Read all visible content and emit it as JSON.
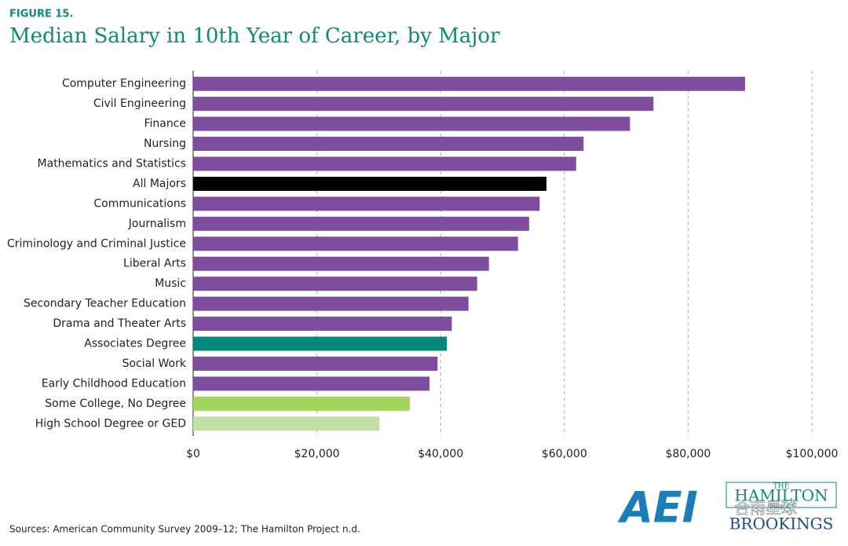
{
  "figure_label": "FIGURE 15.",
  "source": "Sources: American Community Survey 2009–12; The Hamilton Project n.d.",
  "logos": {
    "aei": "AEI",
    "hamilton_top": "THE",
    "hamilton_main": "HAMILTON",
    "hamilton_sub": "PROJECT",
    "brookings": "BROOKINGS",
    "watermark": "合雨星球"
  },
  "chart_data": {
    "type": "hbar",
    "title": "Median Salary in 10th Year of Career, by Major",
    "categories": [
      "Computer Engineering",
      "Civil Engineering",
      "Finance",
      "Nursing",
      "Mathematics and Statistics",
      "All Majors",
      "Communications",
      "Journalism",
      "Criminology and Criminal Justice",
      "Liberal Arts",
      "Music",
      "Secondary Teacher Education",
      "Drama and Theater Arts",
      "Associates Degree",
      "Social Work",
      "Early Childhood Education",
      "Some College, No Degree",
      "High School Degree or GED"
    ],
    "values": [
      89200,
      74400,
      70600,
      63100,
      61900,
      57100,
      56000,
      54300,
      52500,
      47800,
      45900,
      44500,
      41800,
      41000,
      39500,
      38200,
      35000,
      30100
    ],
    "colors": [
      "#7f4d9e",
      "#7f4d9e",
      "#7f4d9e",
      "#7f4d9e",
      "#7f4d9e",
      "#000000",
      "#7f4d9e",
      "#7f4d9e",
      "#7f4d9e",
      "#7f4d9e",
      "#7f4d9e",
      "#7f4d9e",
      "#7f4d9e",
      "#00897b",
      "#7f4d9e",
      "#7f4d9e",
      "#a2d45e",
      "#c4dfa6"
    ],
    "xlim": [
      0,
      100000
    ],
    "xticks": [
      {
        "value": 0,
        "label": "$0"
      },
      {
        "value": 20000,
        "label": "$20,000"
      },
      {
        "value": 40000,
        "label": "$40,000"
      },
      {
        "value": 60000,
        "label": "$60,000"
      },
      {
        "value": 80000,
        "label": "$80,000"
      },
      {
        "value": 100000,
        "label": "$100,000"
      }
    ],
    "grid": true
  }
}
